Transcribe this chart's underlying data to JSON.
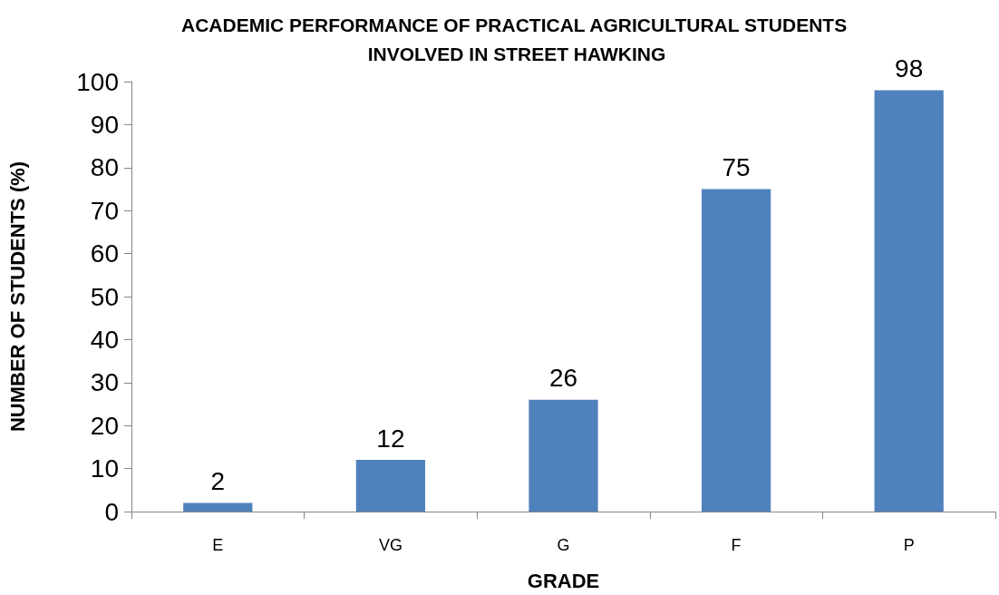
{
  "chart_data": {
    "type": "bar",
    "title": "ACADEMIC PERFORMANCE OF PRACTICAL AGRICULTURAL STUDENTS INVOLVED IN STREET HAWKING",
    "xlabel": "GRADE",
    "ylabel": "NUMBER OF STUDENTS (%)",
    "categories": [
      "E",
      "VG",
      "G",
      "F",
      "P"
    ],
    "values": [
      2,
      12,
      26,
      75,
      98
    ],
    "color": "#4f81bd",
    "ylim": [
      0,
      100
    ],
    "yticks": [
      0,
      10,
      20,
      30,
      40,
      50,
      60,
      70,
      80,
      90,
      100
    ],
    "grid": false,
    "data_labels": true
  }
}
